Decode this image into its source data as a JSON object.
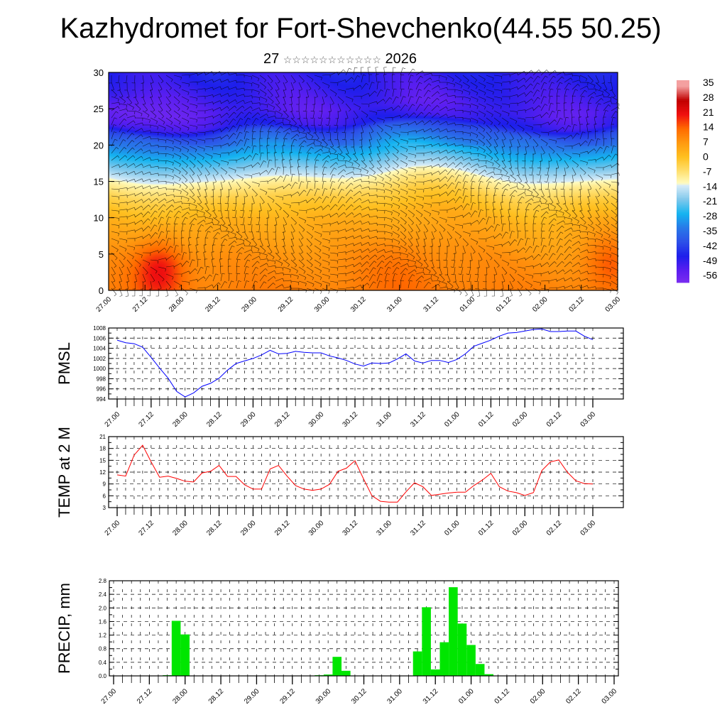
{
  "header": {
    "title": "Kazhydromet for Fort-Shevchenko(44.55 50.25)",
    "subtitle_day": "27",
    "subtitle_stars": "☆☆☆☆☆☆☆☆☆☆☆",
    "subtitle_year": "2026"
  },
  "x_labels": [
    "27.00",
    "27.12",
    "28.00",
    "28.12",
    "29.00",
    "29.12",
    "30.00",
    "30.12",
    "31.00",
    "31.12",
    "01.00",
    "01.12",
    "02.00",
    "02.12",
    "03.00"
  ],
  "chart_data": [
    {
      "type": "heatmap",
      "name": "temperature-wind-cross-section",
      "ylim": [
        0,
        30
      ],
      "yticks": [
        "0",
        "5",
        "10",
        "15",
        "20",
        "25",
        "30"
      ],
      "colorbar_labels": [
        "35",
        "28",
        "21",
        "14",
        "7",
        "0",
        "-7",
        "-14",
        "-21",
        "-28",
        "-35",
        "-42",
        "-49",
        "-56"
      ],
      "colors": {
        "warm_max": "#c00000",
        "zero": "#ffc020",
        "cold_min": "#7a2cf0"
      }
    },
    {
      "type": "line",
      "ylabel": "PMSL",
      "ylim": [
        994,
        1008
      ],
      "yticks": [
        "1008",
        "1006",
        "1004",
        "1002",
        "1000",
        "998",
        "996",
        "994"
      ],
      "color": "#0000ff",
      "values": [
        1005.6,
        1005.1,
        1004.9,
        1004.2,
        1002.2,
        1000.1,
        998.1,
        995.5,
        994.4,
        995.2,
        996.5,
        997.1,
        998.1,
        999.7,
        1001.0,
        1001.5,
        1002.0,
        1002.7,
        1003.6,
        1002.9,
        1003.0,
        1003.4,
        1003.2,
        1003.1,
        1003.1,
        1002.5,
        1002.1,
        1001.6,
        1000.9,
        1000.5,
        1001.1,
        1001.0,
        1001.1,
        1001.9,
        1002.9,
        1001.5,
        1001.1,
        1001.6,
        1001.6,
        1001.2,
        1001.8,
        1002.9,
        1004.4,
        1005.0,
        1005.6,
        1006.4,
        1007.0,
        1007.1,
        1007.4,
        1007.7,
        1007.8,
        1007.3,
        1007.3,
        1007.4,
        1007.4,
        1006.4,
        1005.7
      ]
    },
    {
      "type": "line",
      "ylabel": "TEMP at 2 M",
      "ylim": [
        3,
        21
      ],
      "yticks": [
        "21",
        "18",
        "15",
        "12",
        "9",
        "6",
        "3"
      ],
      "color": "#ff0000",
      "values": [
        11.3,
        11.0,
        16.3,
        18.8,
        14.6,
        10.7,
        11.0,
        10.4,
        9.7,
        9.5,
        11.8,
        12.2,
        13.7,
        10.9,
        10.9,
        8.8,
        7.7,
        7.7,
        12.8,
        13.7,
        11.0,
        8.6,
        7.7,
        7.4,
        7.7,
        8.9,
        12.2,
        13.0,
        14.9,
        10.3,
        6.0,
        4.6,
        4.4,
        4.4,
        7.0,
        9.3,
        8.3,
        6.1,
        6.4,
        6.7,
        6.9,
        6.9,
        8.6,
        10.0,
        11.7,
        8.3,
        7.2,
        6.8,
        6.1,
        6.8,
        12.4,
        14.6,
        15.1,
        12.0,
        9.8,
        9.1,
        9.0
      ]
    },
    {
      "type": "bar",
      "ylabel": "PRECIP, mm",
      "ylim": [
        0,
        2.8
      ],
      "yticks": [
        "2.8",
        "2.4",
        "2.0",
        "1.6",
        "1.2",
        "0.8",
        "0.4",
        "0.0"
      ],
      "color": "#00e600",
      "values": [
        0,
        0,
        0,
        0,
        0,
        0,
        0.02,
        1.62,
        1.22,
        0,
        0,
        0,
        0,
        0,
        0,
        0,
        0,
        0,
        0,
        0,
        0,
        0,
        0,
        0.02,
        0.04,
        0.56,
        0.15,
        0,
        0,
        0,
        0,
        0,
        0,
        0,
        0.72,
        2.02,
        0.19,
        0.99,
        2.61,
        1.54,
        0.91,
        0.35,
        0.05,
        0,
        0,
        0,
        0,
        0,
        0,
        0,
        0,
        0,
        0,
        0,
        0,
        0,
        0
      ]
    }
  ]
}
